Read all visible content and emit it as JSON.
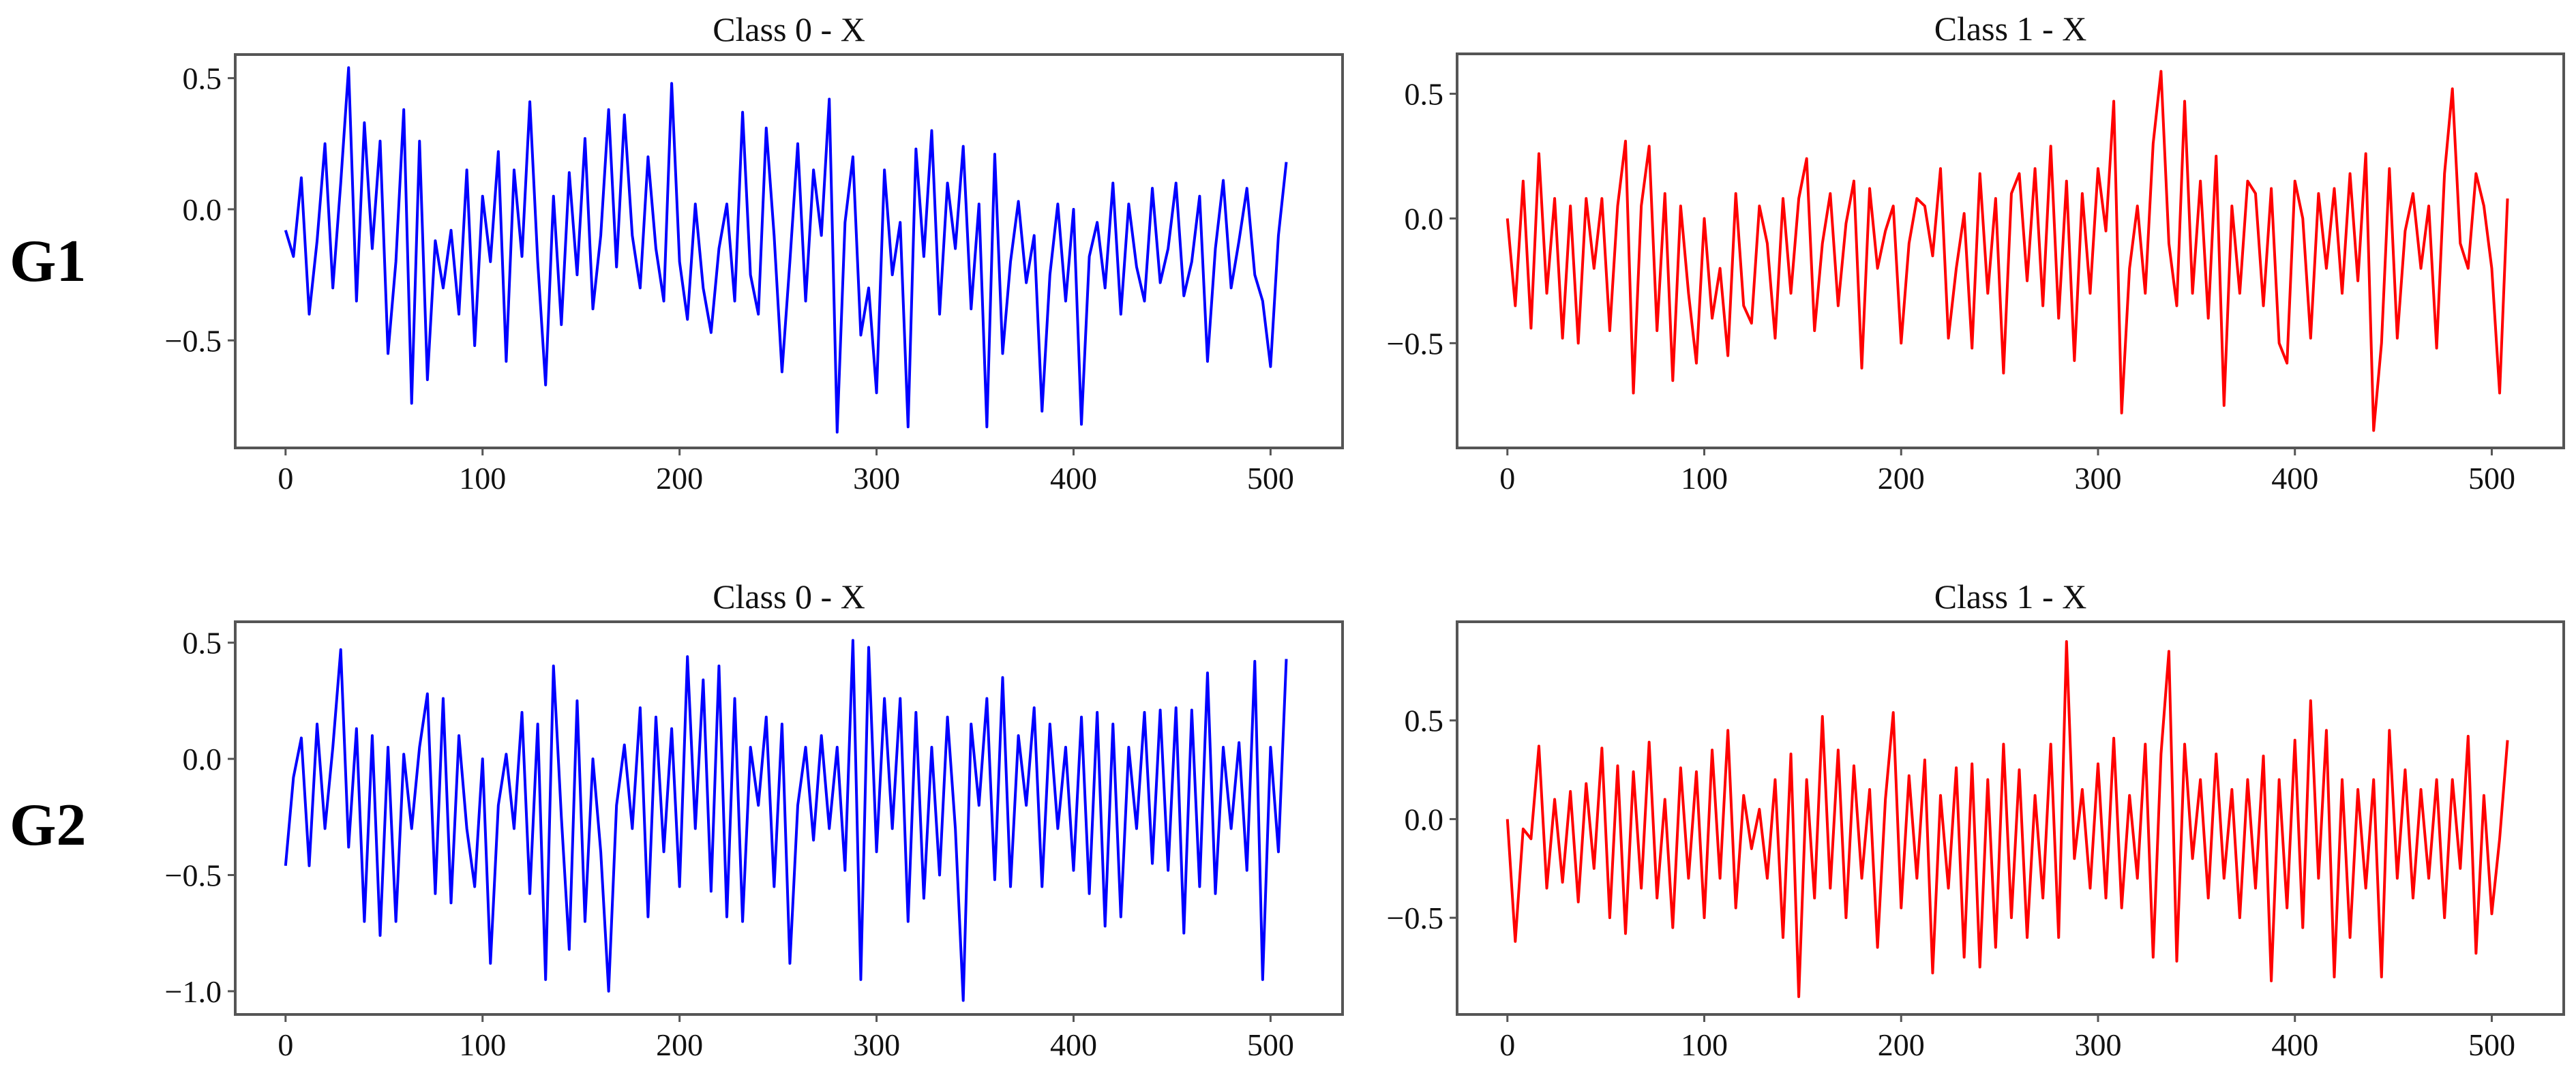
{
  "figure": {
    "row_labels": [
      "G1",
      "G2"
    ],
    "colors": {
      "class0": "#0000ff",
      "class1": "#ff0000",
      "frame": "#555555"
    }
  },
  "chart_data": [
    {
      "type": "line",
      "row": "G1",
      "title": "Class 0 - X",
      "color": "#0000ff",
      "xlabel": "",
      "ylabel": "",
      "xlim": [
        -25.55,
        536.55
      ],
      "ylim": [
        -0.91,
        0.59
      ],
      "xticks": [
        0,
        100,
        200,
        300,
        400,
        500
      ],
      "yticks": [
        0.5,
        0.0,
        -0.5
      ],
      "ytick_labels": [
        "0.5",
        "0.0",
        "−0.5"
      ],
      "grid": false,
      "n_points": 512,
      "x_step": 4,
      "values": [
        -0.08,
        -0.18,
        0.12,
        -0.4,
        -0.12,
        0.25,
        -0.3,
        0.1,
        0.54,
        -0.35,
        0.33,
        -0.15,
        0.26,
        -0.55,
        -0.2,
        0.38,
        -0.74,
        0.26,
        -0.65,
        -0.12,
        -0.3,
        -0.08,
        -0.4,
        0.15,
        -0.52,
        0.05,
        -0.2,
        0.22,
        -0.58,
        0.15,
        -0.18,
        0.41,
        -0.2,
        -0.67,
        0.05,
        -0.44,
        0.14,
        -0.25,
        0.27,
        -0.38,
        -0.1,
        0.38,
        -0.22,
        0.36,
        -0.1,
        -0.3,
        0.2,
        -0.15,
        -0.35,
        0.48,
        -0.2,
        -0.42,
        0.02,
        -0.3,
        -0.47,
        -0.15,
        0.02,
        -0.35,
        0.37,
        -0.25,
        -0.4,
        0.31,
        -0.1,
        -0.62,
        -0.2,
        0.25,
        -0.35,
        0.15,
        -0.1,
        0.42,
        -0.85,
        -0.05,
        0.2,
        -0.48,
        -0.3,
        -0.7,
        0.15,
        -0.25,
        -0.05,
        -0.83,
        0.23,
        -0.18,
        0.3,
        -0.4,
        0.1,
        -0.15,
        0.24,
        -0.38,
        0.02,
        -0.83,
        0.21,
        -0.55,
        -0.2,
        0.03,
        -0.28,
        -0.1,
        -0.77,
        -0.25,
        0.02,
        -0.35,
        0.0,
        -0.82,
        -0.18,
        -0.05,
        -0.3,
        0.1,
        -0.4,
        0.02,
        -0.22,
        -0.35,
        0.08,
        -0.28,
        -0.15,
        0.1,
        -0.33,
        -0.2,
        0.05,
        -0.58,
        -0.15,
        0.11,
        -0.3,
        -0.12,
        0.08,
        -0.25,
        -0.35,
        -0.6,
        -0.1,
        0.18
      ],
      "notable_points": [
        {
          "x": 31,
          "y": 0.54
        },
        {
          "x": 71,
          "y": -0.74
        },
        {
          "x": 207,
          "y": 0.48
        },
        {
          "x": 284,
          "y": 0.42
        },
        {
          "x": 290,
          "y": -0.85
        },
        {
          "x": 333,
          "y": -0.83
        },
        {
          "x": 377,
          "y": -0.83
        },
        {
          "x": 426,
          "y": -0.81
        },
        {
          "x": 511,
          "y": 0.18
        }
      ]
    },
    {
      "type": "line",
      "row": "G1",
      "title": "Class 1 - X",
      "color": "#ff0000",
      "xlabel": "",
      "ylabel": "",
      "xlim": [
        -25.55,
        536.55
      ],
      "ylim": [
        -0.92,
        0.66
      ],
      "xticks": [
        0,
        100,
        200,
        300,
        400,
        500
      ],
      "yticks": [
        0.5,
        0.0,
        -0.5
      ],
      "ytick_labels": [
        "0.5",
        "0.0",
        "−0.5"
      ],
      "grid": false,
      "n_points": 512,
      "x_step": 4,
      "values": [
        0.0,
        -0.35,
        0.15,
        -0.44,
        0.26,
        -0.3,
        0.08,
        -0.48,
        0.05,
        -0.5,
        0.08,
        -0.2,
        0.08,
        -0.45,
        0.05,
        0.31,
        -0.7,
        0.05,
        0.29,
        -0.45,
        0.1,
        -0.65,
        0.05,
        -0.3,
        -0.58,
        0.0,
        -0.4,
        -0.2,
        -0.55,
        0.1,
        -0.35,
        -0.42,
        0.05,
        -0.1,
        -0.48,
        0.08,
        -0.3,
        0.08,
        0.24,
        -0.45,
        -0.1,
        0.1,
        -0.35,
        -0.02,
        0.15,
        -0.6,
        0.12,
        -0.2,
        -0.05,
        0.05,
        -0.5,
        -0.1,
        0.08,
        0.05,
        -0.15,
        0.2,
        -0.48,
        -0.2,
        0.02,
        -0.52,
        0.18,
        -0.3,
        0.08,
        -0.62,
        0.1,
        0.18,
        -0.25,
        0.2,
        -0.35,
        0.29,
        -0.4,
        0.15,
        -0.57,
        0.1,
        -0.3,
        0.2,
        -0.05,
        0.47,
        -0.78,
        -0.2,
        0.05,
        -0.3,
        0.3,
        0.59,
        -0.1,
        -0.35,
        0.47,
        -0.3,
        0.15,
        -0.4,
        0.25,
        -0.75,
        0.05,
        -0.3,
        0.15,
        0.1,
        -0.35,
        0.12,
        -0.5,
        -0.58,
        0.15,
        0.0,
        -0.48,
        0.1,
        -0.2,
        0.12,
        -0.3,
        0.18,
        -0.25,
        0.26,
        -0.85,
        -0.5,
        0.2,
        -0.48,
        -0.05,
        0.1,
        -0.2,
        0.05,
        -0.52,
        0.18,
        0.52,
        -0.1,
        -0.2,
        0.18,
        0.05,
        -0.2,
        -0.7,
        0.08
      ],
      "notable_points": [
        {
          "x": 63,
          "y": 0.31
        },
        {
          "x": 70,
          "y": -0.7
        },
        {
          "x": 314,
          "y": 0.47
        },
        {
          "x": 316,
          "y": -0.78
        },
        {
          "x": 337,
          "y": 0.59
        },
        {
          "x": 366,
          "y": -0.75
        },
        {
          "x": 444,
          "y": -0.85
        },
        {
          "x": 487,
          "y": 0.52
        },
        {
          "x": 508,
          "y": -0.7
        }
      ]
    },
    {
      "type": "line",
      "row": "G2",
      "title": "Class 0 - X",
      "color": "#0000ff",
      "xlabel": "",
      "ylabel": "",
      "xlim": [
        -25.55,
        536.55
      ],
      "ylim": [
        -1.1,
        0.59
      ],
      "xticks": [
        0,
        100,
        200,
        300,
        400,
        500
      ],
      "yticks": [
        0.5,
        0.0,
        -0.5,
        -1.0
      ],
      "ytick_labels": [
        "0.5",
        "0.0",
        "−0.5",
        "−1.0"
      ],
      "grid": false,
      "n_points": 512,
      "x_step": 4,
      "values": [
        -0.46,
        -0.08,
        0.09,
        -0.46,
        0.15,
        -0.3,
        0.05,
        0.47,
        -0.38,
        0.13,
        -0.7,
        0.1,
        -0.76,
        0.05,
        -0.7,
        0.02,
        -0.3,
        0.05,
        0.28,
        -0.58,
        0.26,
        -0.62,
        0.1,
        -0.3,
        -0.55,
        0.0,
        -0.88,
        -0.2,
        0.02,
        -0.3,
        0.2,
        -0.58,
        0.15,
        -0.95,
        0.4,
        -0.25,
        -0.82,
        0.25,
        -0.7,
        0.0,
        -0.4,
        -1.0,
        -0.2,
        0.06,
        -0.3,
        0.22,
        -0.68,
        0.18,
        -0.4,
        0.13,
        -0.55,
        0.44,
        -0.3,
        0.34,
        -0.57,
        0.4,
        -0.68,
        0.26,
        -0.7,
        0.05,
        -0.2,
        0.18,
        -0.55,
        0.15,
        -0.88,
        -0.2,
        0.05,
        -0.35,
        0.1,
        -0.3,
        0.05,
        -0.48,
        0.51,
        -0.95,
        0.48,
        -0.4,
        0.26,
        -0.3,
        0.26,
        -0.7,
        0.2,
        -0.6,
        0.05,
        -0.5,
        0.18,
        -0.3,
        -1.04,
        0.15,
        -0.2,
        0.26,
        -0.52,
        0.35,
        -0.55,
        0.1,
        -0.2,
        0.22,
        -0.55,
        0.15,
        -0.3,
        0.05,
        -0.48,
        0.18,
        -0.58,
        0.2,
        -0.72,
        0.15,
        -0.68,
        0.05,
        -0.3,
        0.2,
        -0.45,
        0.21,
        -0.48,
        0.22,
        -0.75,
        0.21,
        -0.55,
        0.37,
        -0.58,
        0.05,
        -0.3,
        0.07,
        -0.48,
        0.42,
        -0.95,
        0.05,
        -0.4,
        0.43
      ],
      "notable_points": [
        {
          "x": 27,
          "y": 0.47
        },
        {
          "x": 98,
          "y": -0.88
        },
        {
          "x": 123,
          "y": -0.95
        },
        {
          "x": 150,
          "y": -1.0
        },
        {
          "x": 284,
          "y": 0.51
        },
        {
          "x": 284,
          "y": -0.95
        },
        {
          "x": 336,
          "y": -1.04
        },
        {
          "x": 503,
          "y": -0.95
        },
        {
          "x": 511,
          "y": 0.43
        }
      ]
    },
    {
      "type": "line",
      "row": "G2",
      "title": "Class 1 - X",
      "color": "#ff0000",
      "xlabel": "",
      "ylabel": "",
      "xlim": [
        -25.55,
        536.55
      ],
      "ylim": [
        -0.99,
        1.0
      ],
      "xticks": [
        0,
        100,
        200,
        300,
        400,
        500
      ],
      "yticks": [
        0.5,
        0.0,
        -0.5
      ],
      "ytick_labels": [
        "0.5",
        "0.0",
        "−0.5"
      ],
      "grid": false,
      "n_points": 512,
      "x_step": 4,
      "values": [
        0.0,
        -0.62,
        -0.05,
        -0.1,
        0.37,
        -0.35,
        0.1,
        -0.32,
        0.14,
        -0.42,
        0.18,
        -0.25,
        0.36,
        -0.5,
        0.27,
        -0.58,
        0.24,
        -0.35,
        0.39,
        -0.4,
        0.1,
        -0.55,
        0.26,
        -0.3,
        0.24,
        -0.5,
        0.35,
        -0.3,
        0.45,
        -0.45,
        0.12,
        -0.15,
        0.05,
        -0.3,
        0.2,
        -0.6,
        0.33,
        -0.9,
        0.2,
        -0.4,
        0.52,
        -0.35,
        0.35,
        -0.5,
        0.27,
        -0.3,
        0.15,
        -0.65,
        0.1,
        0.54,
        -0.45,
        0.22,
        -0.3,
        0.3,
        -0.78,
        0.12,
        -0.35,
        0.26,
        -0.7,
        0.28,
        -0.75,
        0.2,
        -0.65,
        0.38,
        -0.5,
        0.25,
        -0.6,
        0.12,
        -0.4,
        0.38,
        -0.6,
        0.9,
        -0.2,
        0.15,
        -0.35,
        0.28,
        -0.4,
        0.41,
        -0.45,
        0.12,
        -0.3,
        0.38,
        -0.7,
        0.33,
        0.85,
        -0.72,
        0.38,
        -0.2,
        0.2,
        -0.4,
        0.33,
        -0.3,
        0.15,
        -0.5,
        0.2,
        -0.35,
        0.32,
        -0.82,
        0.2,
        -0.45,
        0.4,
        -0.55,
        0.6,
        -0.3,
        0.45,
        -0.8,
        0.2,
        -0.6,
        0.15,
        -0.35,
        0.2,
        -0.8,
        0.45,
        -0.3,
        0.25,
        -0.4,
        0.15,
        -0.3,
        0.2,
        -0.5,
        0.2,
        -0.25,
        0.42,
        -0.68,
        0.12,
        -0.48,
        -0.1,
        0.4
      ],
      "notable_points": [
        {
          "x": 1,
          "y": -0.62
        },
        {
          "x": 150,
          "y": -0.9
        },
        {
          "x": 196,
          "y": 0.54
        },
        {
          "x": 301,
          "y": 0.9
        },
        {
          "x": 350,
          "y": 0.85
        },
        {
          "x": 391,
          "y": -0.82
        },
        {
          "x": 420,
          "y": 0.6
        },
        {
          "x": 461,
          "y": -0.8
        },
        {
          "x": 511,
          "y": 0.4
        }
      ]
    }
  ]
}
